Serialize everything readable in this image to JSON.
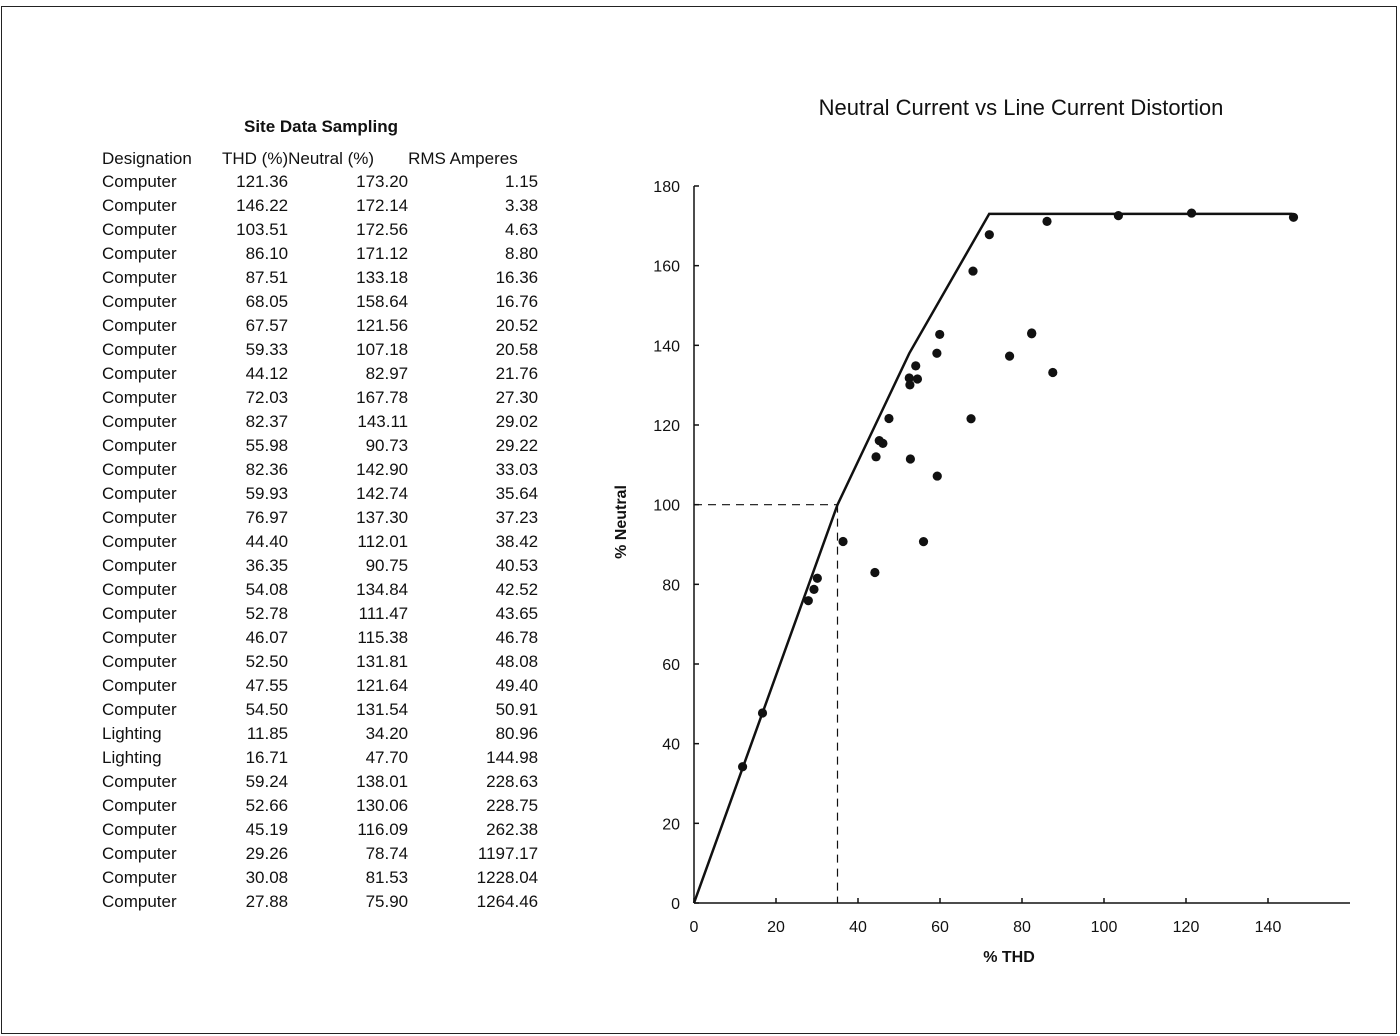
{
  "table": {
    "title": "Site Data Sampling",
    "columns": [
      "Designation",
      "THD (%)",
      "Neutral (%)",
      "RMS Amperes"
    ],
    "rows": [
      [
        "Computer",
        "121.36",
        "173.20",
        "1.15"
      ],
      [
        "Computer",
        "146.22",
        "172.14",
        "3.38"
      ],
      [
        "Computer",
        "103.51",
        "172.56",
        "4.63"
      ],
      [
        "Computer",
        "86.10",
        "171.12",
        "8.80"
      ],
      [
        "Computer",
        "87.51",
        "133.18",
        "16.36"
      ],
      [
        "Computer",
        "68.05",
        "158.64",
        "16.76"
      ],
      [
        "Computer",
        "67.57",
        "121.56",
        "20.52"
      ],
      [
        "Computer",
        "59.33",
        "107.18",
        "20.58"
      ],
      [
        "Computer",
        "44.12",
        "82.97",
        "21.76"
      ],
      [
        "Computer",
        "72.03",
        "167.78",
        "27.30"
      ],
      [
        "Computer",
        "82.37",
        "143.11",
        "29.02"
      ],
      [
        "Computer",
        "55.98",
        "90.73",
        "29.22"
      ],
      [
        "Computer",
        "82.36",
        "142.90",
        "33.03"
      ],
      [
        "Computer",
        "59.93",
        "142.74",
        "35.64"
      ],
      [
        "Computer",
        "76.97",
        "137.30",
        "37.23"
      ],
      [
        "Computer",
        "44.40",
        "112.01",
        "38.42"
      ],
      [
        "Computer",
        "36.35",
        "90.75",
        "40.53"
      ],
      [
        "Computer",
        "54.08",
        "134.84",
        "42.52"
      ],
      [
        "Computer",
        "52.78",
        "111.47",
        "43.65"
      ],
      [
        "Computer",
        "46.07",
        "115.38",
        "46.78"
      ],
      [
        "Computer",
        "52.50",
        "131.81",
        "48.08"
      ],
      [
        "Computer",
        "47.55",
        "121.64",
        "49.40"
      ],
      [
        "Computer",
        "54.50",
        "131.54",
        "50.91"
      ],
      [
        "Lighting",
        "11.85",
        "34.20",
        "80.96"
      ],
      [
        "Lighting",
        "16.71",
        "47.70",
        "144.98"
      ],
      [
        "Computer",
        "59.24",
        "138.01",
        "228.63"
      ],
      [
        "Computer",
        "52.66",
        "130.06",
        "228.75"
      ],
      [
        "Computer",
        "45.19",
        "116.09",
        "262.38"
      ],
      [
        "Computer",
        "29.26",
        "78.74",
        "1197.17"
      ],
      [
        "Computer",
        "30.08",
        "81.53",
        "1228.04"
      ],
      [
        "Computer",
        "27.88",
        "75.90",
        "1264.46"
      ]
    ]
  },
  "chart_data": {
    "type": "scatter",
    "title": "Neutral Current vs Line Current Distortion",
    "xlabel": "% THD",
    "ylabel": "% Neutral",
    "xlim": [
      0,
      160
    ],
    "ylim": [
      0,
      180
    ],
    "xticks": [
      0,
      20,
      40,
      60,
      80,
      100,
      120,
      140
    ],
    "yticks": [
      0,
      20,
      40,
      60,
      80,
      100,
      120,
      140,
      160,
      180
    ],
    "grid": false,
    "points": [
      [
        121.36,
        173.2
      ],
      [
        146.22,
        172.14
      ],
      [
        103.51,
        172.56
      ],
      [
        86.1,
        171.12
      ],
      [
        87.51,
        133.18
      ],
      [
        68.05,
        158.64
      ],
      [
        67.57,
        121.56
      ],
      [
        59.33,
        107.18
      ],
      [
        44.12,
        82.97
      ],
      [
        72.03,
        167.78
      ],
      [
        82.37,
        143.11
      ],
      [
        55.98,
        90.73
      ],
      [
        82.36,
        142.9
      ],
      [
        59.93,
        142.74
      ],
      [
        76.97,
        137.3
      ],
      [
        44.4,
        112.01
      ],
      [
        36.35,
        90.75
      ],
      [
        54.08,
        134.84
      ],
      [
        52.78,
        111.47
      ],
      [
        46.07,
        115.38
      ],
      [
        52.5,
        131.81
      ],
      [
        47.55,
        121.64
      ],
      [
        54.5,
        131.54
      ],
      [
        11.85,
        34.2
      ],
      [
        16.71,
        47.7
      ],
      [
        59.24,
        138.01
      ],
      [
        52.66,
        130.06
      ],
      [
        45.19,
        116.09
      ],
      [
        29.26,
        78.74
      ],
      [
        30.08,
        81.53
      ],
      [
        27.88,
        75.9
      ]
    ],
    "envelope_line": [
      [
        0,
        0
      ],
      [
        35,
        100
      ],
      [
        52.5,
        138
      ],
      [
        72,
        173
      ],
      [
        146,
        173
      ]
    ],
    "reference_lines": {
      "x": 35,
      "y": 100,
      "style": "dashed"
    }
  }
}
